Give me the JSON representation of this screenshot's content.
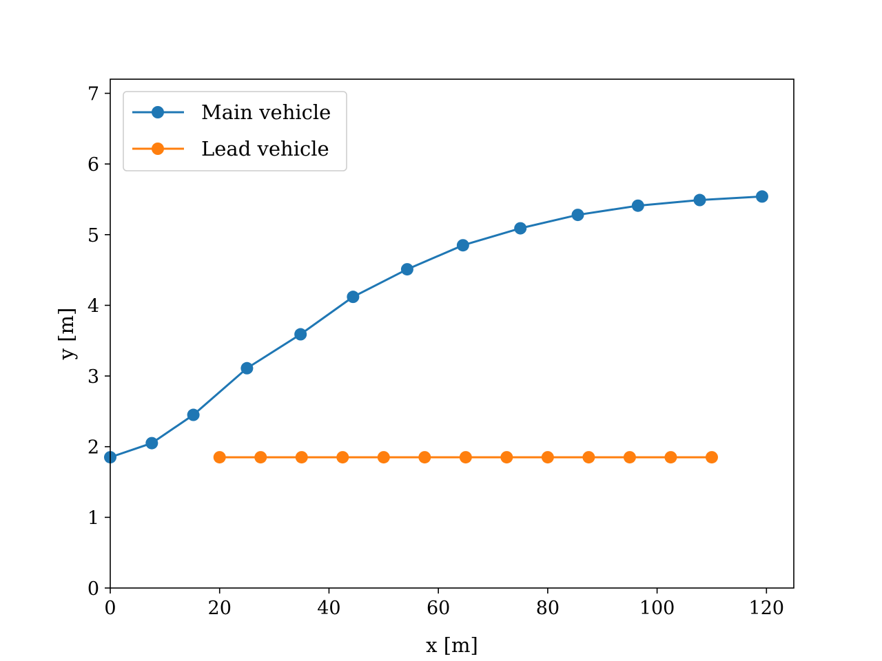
{
  "chart_data": {
    "type": "line",
    "xlabel": "x [m]",
    "ylabel": "y [m]",
    "xlim": [
      0,
      125
    ],
    "ylim": [
      0,
      7.2
    ],
    "xticks": [
      0,
      20,
      40,
      60,
      80,
      100,
      120
    ],
    "yticks": [
      0,
      1,
      2,
      3,
      4,
      5,
      6,
      7
    ],
    "grid": false,
    "legend_position": "top-left",
    "series": [
      {
        "name": "Main vehicle",
        "color": "#1f77b4",
        "marker": "circle",
        "x": [
          0,
          7.6,
          15.2,
          25.0,
          34.8,
          44.4,
          54.3,
          64.5,
          75.0,
          85.5,
          96.5,
          107.8,
          119.2
        ],
        "y": [
          1.85,
          2.05,
          2.45,
          3.11,
          3.59,
          4.12,
          4.51,
          4.85,
          5.09,
          5.28,
          5.41,
          5.49,
          5.54
        ]
      },
      {
        "name": "Lead vehicle",
        "color": "#ff7f0e",
        "marker": "circle",
        "x": [
          20.0,
          27.5,
          35.0,
          42.5,
          50.0,
          57.5,
          65.0,
          72.5,
          80.0,
          87.5,
          95.0,
          102.5,
          110.0
        ],
        "y": [
          1.85,
          1.85,
          1.85,
          1.85,
          1.85,
          1.85,
          1.85,
          1.85,
          1.85,
          1.85,
          1.85,
          1.85,
          1.85
        ]
      }
    ]
  }
}
